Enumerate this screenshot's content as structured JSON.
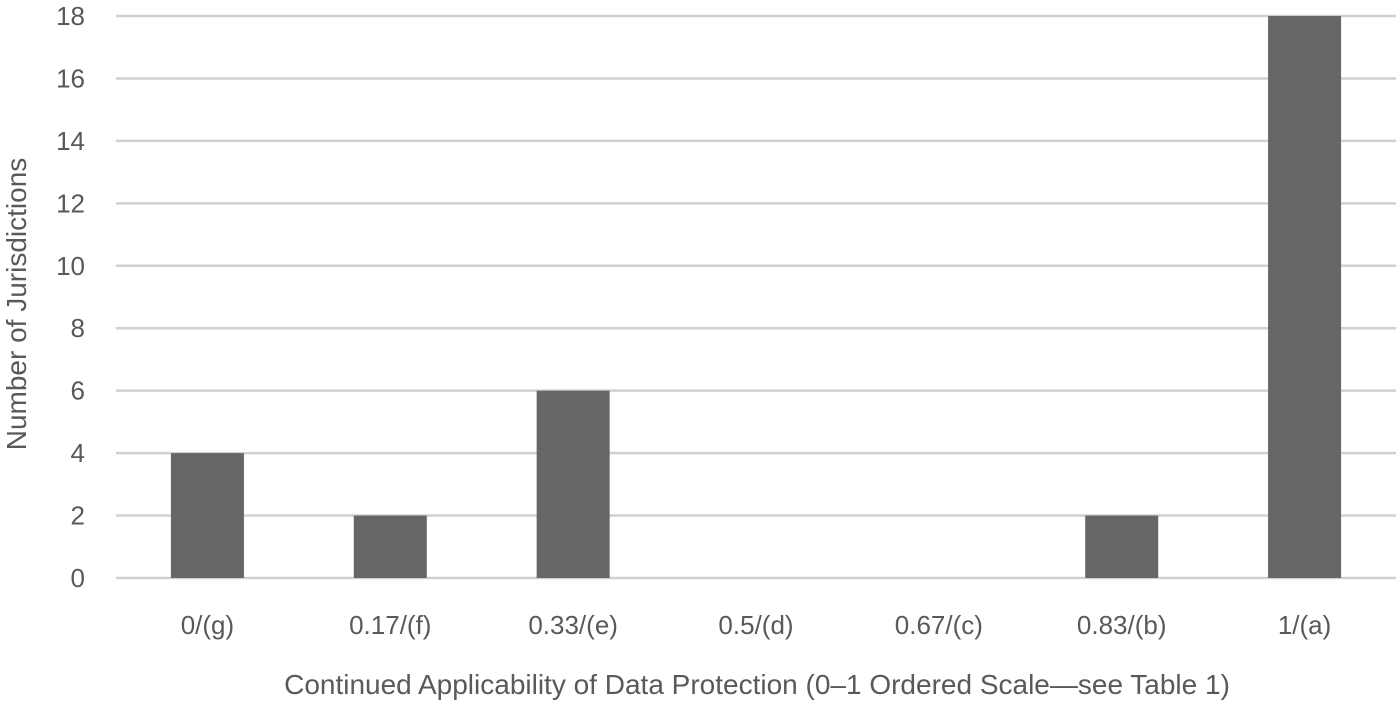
{
  "chart_data": {
    "type": "bar",
    "categories": [
      "0/(g)",
      "0.17/(f)",
      "0.33/(e)",
      "0.5/(d)",
      "0.67/(c)",
      "0.83/(b)",
      "1/(a)"
    ],
    "values": [
      4,
      2,
      6,
      0,
      0,
      2,
      18
    ],
    "xlabel": "Continued Applicability of Data Protection (0–1 Ordered Scale—see Table 1)",
    "ylabel": "Number of Jurisdictions",
    "ylim": [
      0,
      18
    ],
    "yticks": [
      0,
      2,
      4,
      6,
      8,
      10,
      12,
      14,
      16,
      18
    ],
    "grid": true,
    "legend": "none",
    "colors": {
      "bar": "#666666",
      "grid": "#d0d0d0",
      "text": "#595959"
    }
  }
}
